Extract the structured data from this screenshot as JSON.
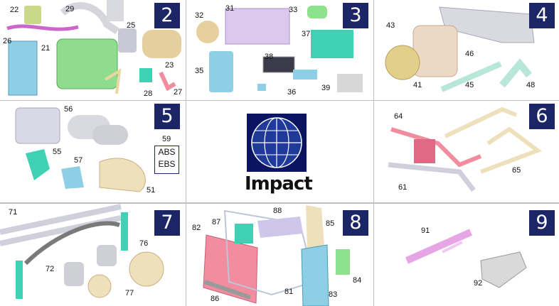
{
  "logo": {
    "text": "Impact"
  },
  "cells": [
    {
      "number": "2",
      "labels": [
        "22",
        "29",
        "26",
        "21",
        "25",
        "23",
        "28",
        "27"
      ]
    },
    {
      "number": "3",
      "labels": [
        "32",
        "31",
        "33",
        "37",
        "35",
        "38",
        "36",
        "39"
      ]
    },
    {
      "number": "4",
      "labels": [
        "43",
        "46",
        "41",
        "45",
        "48"
      ]
    },
    {
      "number": "5",
      "labels": [
        "56",
        "59",
        "55",
        "57",
        "51"
      ],
      "brake": {
        "abs": "ABS",
        "ebs": "EBS"
      }
    },
    {
      "number": "6",
      "labels": [
        "64",
        "61",
        "65"
      ]
    },
    {
      "number": "7",
      "labels": [
        "71",
        "76",
        "72",
        "77"
      ]
    },
    {
      "number": "8",
      "labels": [
        "88",
        "82",
        "87",
        "85",
        "84",
        "86",
        "81",
        "83"
      ]
    },
    {
      "number": "9",
      "labels": [
        "91",
        "92"
      ]
    }
  ],
  "colors": {
    "badge": "#1c2566",
    "engine": "#9ae29a",
    "cab": "#f28da0",
    "parts": "#cfc6ec",
    "cyan": "#3fd1b4"
  }
}
